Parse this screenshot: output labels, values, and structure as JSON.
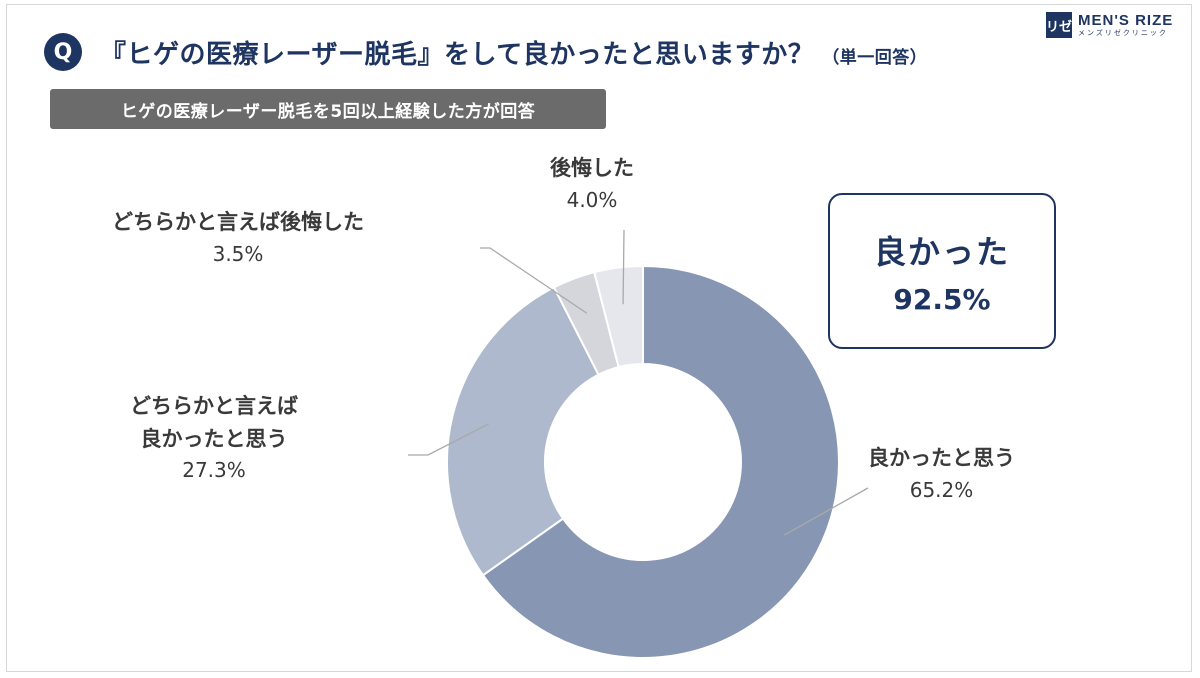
{
  "header": {
    "q_badge": "Q",
    "question": "『ヒゲの医療レーザー脱毛』をして良かったと思いますか？",
    "question_note": "（単一回答）",
    "subnote": "ヒゲの医療レーザー脱毛を5回以上経験した方が回答"
  },
  "logo": {
    "mark": "リゼ",
    "name": "MEN'S RIZE",
    "sub": "メンズリゼクリニック"
  },
  "summary": {
    "label": "良かった",
    "value": "92.5%"
  },
  "chart_data": {
    "type": "pie",
    "donut": true,
    "start_angle_deg": 0,
    "direction": "clockwise",
    "slices": [
      {
        "key": "good",
        "label": "良かったと思う",
        "label_lines": [
          "良かったと思う"
        ],
        "value": 65.2,
        "value_label": "65.2%",
        "color": "#8796b3"
      },
      {
        "key": "somewhat_good",
        "label": "どちらかと言えば良かったと思う",
        "label_lines": [
          "どちらかと言えば",
          "良かったと思う"
        ],
        "value": 27.3,
        "value_label": "27.3%",
        "color": "#aeb9cd"
      },
      {
        "key": "somewhat_regret",
        "label": "どちらかと言えば後悔した",
        "label_lines": [
          "どちらかと言えば後悔した"
        ],
        "value": 3.5,
        "value_label": "3.5%",
        "color": "#d4d6dc"
      },
      {
        "key": "regret",
        "label": "後悔した",
        "label_lines": [
          "後悔した"
        ],
        "value": 4.0,
        "value_label": "4.0%",
        "color": "#e6e7ec"
      }
    ]
  }
}
